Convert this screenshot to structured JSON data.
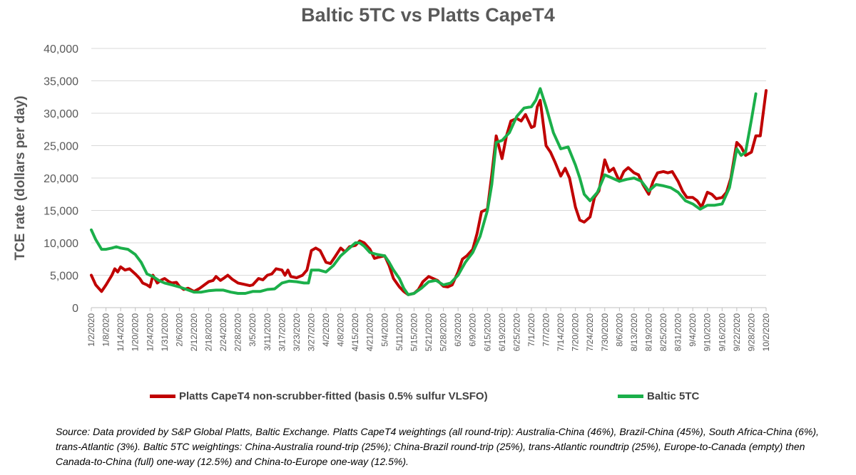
{
  "chart_data": {
    "type": "line",
    "title": "Baltic 5TC vs Platts CapeT4",
    "ylabel": "TCE rate (dollars per day)",
    "xlabel": "",
    "ylim": [
      0,
      40000
    ],
    "y_ticks": [
      "0",
      "5,000",
      "10,000",
      "15,000",
      "20,000",
      "25,000",
      "30,000",
      "35,000",
      "40,000"
    ],
    "grid": "horizontal",
    "legend_position": "bottom",
    "x_ticks": [
      "1/2/2020",
      "1/8/2020",
      "1/14/2020",
      "1/20/2020",
      "1/24/2020",
      "1/31/2020",
      "2/6/2020",
      "2/12/2020",
      "2/18/2020",
      "2/24/2020",
      "2/28/2020",
      "3/5/2020",
      "3/11/2020",
      "3/17/2020",
      "3/23/2020",
      "3/27/2020",
      "4/2/2020",
      "4/8/2020",
      "4/15/2020",
      "4/21/2020",
      "5/4/2020",
      "5/11/2020",
      "5/15/2020",
      "5/21/2020",
      "5/28/2020",
      "6/3/2020",
      "6/9/2020",
      "6/15/2020",
      "6/19/2020",
      "6/25/2020",
      "7/1/2020",
      "7/7/2020",
      "7/14/2020",
      "7/20/2020",
      "7/24/2020",
      "7/30/2020",
      "8/6/2020",
      "8/13/2020",
      "8/19/2020",
      "8/25/2020",
      "8/31/2020",
      "9/4/2020",
      "9/10/2020",
      "9/16/2020",
      "9/22/2020",
      "9/28/2020",
      "10/2/2020"
    ],
    "series": [
      {
        "name": "Platts CapeT4 non-scrubber-fitted (basis 0.5% sulfur VLSFO)",
        "color": "#C00000",
        "points": [
          [
            0,
            5000
          ],
          [
            0.3,
            3500
          ],
          [
            0.7,
            2500
          ],
          [
            1,
            3500
          ],
          [
            1.4,
            5000
          ],
          [
            1.6,
            6000
          ],
          [
            1.8,
            5500
          ],
          [
            2,
            6300
          ],
          [
            2.3,
            5800
          ],
          [
            2.6,
            6000
          ],
          [
            3,
            5200
          ],
          [
            3.3,
            4500
          ],
          [
            3.5,
            3800
          ],
          [
            3.8,
            3500
          ],
          [
            4,
            3200
          ],
          [
            4.2,
            5000
          ],
          [
            4.5,
            3800
          ],
          [
            4.8,
            4300
          ],
          [
            5,
            4500
          ],
          [
            5.3,
            4000
          ],
          [
            5.5,
            3800
          ],
          [
            5.8,
            3900
          ],
          [
            6,
            3300
          ],
          [
            6.3,
            2800
          ],
          [
            6.6,
            3000
          ],
          [
            7,
            2500
          ],
          [
            7.4,
            3000
          ],
          [
            7.7,
            3500
          ],
          [
            8,
            4000
          ],
          [
            8.3,
            4200
          ],
          [
            8.5,
            4800
          ],
          [
            8.8,
            4200
          ],
          [
            9,
            4500
          ],
          [
            9.3,
            5000
          ],
          [
            9.6,
            4400
          ],
          [
            10,
            3800
          ],
          [
            10.4,
            3600
          ],
          [
            10.8,
            3400
          ],
          [
            11,
            3500
          ],
          [
            11.4,
            4500
          ],
          [
            11.7,
            4300
          ],
          [
            12,
            5000
          ],
          [
            12.3,
            5200
          ],
          [
            12.6,
            6000
          ],
          [
            13,
            5800
          ],
          [
            13.2,
            5000
          ],
          [
            13.4,
            5800
          ],
          [
            13.6,
            4800
          ],
          [
            14,
            4600
          ],
          [
            14.4,
            5000
          ],
          [
            14.7,
            5800
          ],
          [
            15,
            8800
          ],
          [
            15.3,
            9200
          ],
          [
            15.6,
            8800
          ],
          [
            16,
            7000
          ],
          [
            16.3,
            6800
          ],
          [
            16.6,
            7800
          ],
          [
            17,
            9200
          ],
          [
            17.3,
            8600
          ],
          [
            17.6,
            9400
          ],
          [
            18,
            9600
          ],
          [
            18.3,
            10300
          ],
          [
            18.6,
            10000
          ],
          [
            19,
            9000
          ],
          [
            19.3,
            7600
          ],
          [
            19.6,
            7800
          ],
          [
            20,
            8000
          ],
          [
            20.3,
            6500
          ],
          [
            20.6,
            4500
          ],
          [
            21,
            3200
          ],
          [
            21.3,
            2500
          ],
          [
            21.6,
            2000
          ],
          [
            22,
            2200
          ],
          [
            22.3,
            2800
          ],
          [
            22.6,
            4000
          ],
          [
            23,
            4800
          ],
          [
            23.3,
            4500
          ],
          [
            23.6,
            4200
          ],
          [
            24,
            3300
          ],
          [
            24.3,
            3200
          ],
          [
            24.6,
            3500
          ],
          [
            25,
            5500
          ],
          [
            25.3,
            7500
          ],
          [
            25.6,
            8000
          ],
          [
            26,
            9000
          ],
          [
            26.3,
            11500
          ],
          [
            26.6,
            14800
          ],
          [
            27,
            15200
          ],
          [
            27.3,
            20500
          ],
          [
            27.6,
            26500
          ],
          [
            28,
            23000
          ],
          [
            28.3,
            26500
          ],
          [
            28.6,
            28800
          ],
          [
            29,
            29200
          ],
          [
            29.3,
            28800
          ],
          [
            29.6,
            29800
          ],
          [
            30,
            27800
          ],
          [
            30.2,
            28000
          ],
          [
            30.4,
            31000
          ],
          [
            30.6,
            32000
          ],
          [
            31,
            25000
          ],
          [
            31.3,
            24000
          ],
          [
            31.6,
            22500
          ],
          [
            32,
            20300
          ],
          [
            32.3,
            21500
          ],
          [
            32.6,
            20000
          ],
          [
            33,
            15500
          ],
          [
            33.3,
            13500
          ],
          [
            33.6,
            13200
          ],
          [
            34,
            14000
          ],
          [
            34.3,
            17000
          ],
          [
            34.6,
            18000
          ],
          [
            35,
            22800
          ],
          [
            35.3,
            21000
          ],
          [
            35.6,
            21500
          ],
          [
            36,
            19500
          ],
          [
            36.3,
            21000
          ],
          [
            36.6,
            21600
          ],
          [
            37,
            20800
          ],
          [
            37.3,
            20500
          ],
          [
            37.6,
            19000
          ],
          [
            38,
            17500
          ],
          [
            38.3,
            19500
          ],
          [
            38.6,
            20800
          ],
          [
            39,
            21000
          ],
          [
            39.3,
            20800
          ],
          [
            39.6,
            21000
          ],
          [
            40,
            19500
          ],
          [
            40.3,
            18000
          ],
          [
            40.6,
            17000
          ],
          [
            41,
            17000
          ],
          [
            41.3,
            16500
          ],
          [
            41.6,
            15500
          ],
          [
            42,
            17800
          ],
          [
            42.3,
            17500
          ],
          [
            42.6,
            16800
          ],
          [
            43,
            17000
          ],
          [
            43.3,
            17800
          ],
          [
            43.6,
            20000
          ],
          [
            44,
            25500
          ],
          [
            44.3,
            24800
          ],
          [
            44.6,
            23500
          ],
          [
            45,
            24000
          ],
          [
            45.3,
            26500
          ],
          [
            45.6,
            26500
          ],
          [
            46,
            33500
          ]
        ]
      },
      {
        "name": "Baltic 5TC",
        "color": "#1BAF4A",
        "points": [
          [
            0,
            12000
          ],
          [
            0.3,
            10500
          ],
          [
            0.7,
            9000
          ],
          [
            1,
            9000
          ],
          [
            1.4,
            9200
          ],
          [
            1.7,
            9400
          ],
          [
            2,
            9200
          ],
          [
            2.5,
            9000
          ],
          [
            3,
            8200
          ],
          [
            3.4,
            7000
          ],
          [
            3.8,
            5200
          ],
          [
            4.2,
            4800
          ],
          [
            4.6,
            4200
          ],
          [
            5,
            3800
          ],
          [
            5.5,
            3500
          ],
          [
            6,
            3200
          ],
          [
            6.5,
            2800
          ],
          [
            7,
            2400
          ],
          [
            7.5,
            2400
          ],
          [
            8,
            2600
          ],
          [
            8.5,
            2700
          ],
          [
            9,
            2700
          ],
          [
            9.5,
            2400
          ],
          [
            10,
            2200
          ],
          [
            10.5,
            2200
          ],
          [
            11,
            2500
          ],
          [
            11.5,
            2500
          ],
          [
            12,
            2800
          ],
          [
            12.5,
            2900
          ],
          [
            13,
            3800
          ],
          [
            13.5,
            4100
          ],
          [
            14,
            4000
          ],
          [
            14.5,
            3800
          ],
          [
            14.8,
            3800
          ],
          [
            15,
            5800
          ],
          [
            15.5,
            5800
          ],
          [
            16,
            5500
          ],
          [
            16.5,
            6500
          ],
          [
            17,
            8000
          ],
          [
            17.5,
            9000
          ],
          [
            18,
            10000
          ],
          [
            18.3,
            10000
          ],
          [
            18.6,
            9500
          ],
          [
            19,
            8500
          ],
          [
            19.5,
            8200
          ],
          [
            20,
            8000
          ],
          [
            20.3,
            7000
          ],
          [
            20.6,
            5800
          ],
          [
            21,
            4500
          ],
          [
            21.3,
            3000
          ],
          [
            21.6,
            2000
          ],
          [
            22,
            2200
          ],
          [
            22.5,
            3000
          ],
          [
            23,
            4000
          ],
          [
            23.5,
            4200
          ],
          [
            24,
            3500
          ],
          [
            24.5,
            3800
          ],
          [
            25,
            5000
          ],
          [
            25.5,
            7000
          ],
          [
            26,
            8500
          ],
          [
            26.5,
            11000
          ],
          [
            27,
            15000
          ],
          [
            27.3,
            19000
          ],
          [
            27.6,
            25500
          ],
          [
            28,
            25800
          ],
          [
            28.5,
            27000
          ],
          [
            29,
            29500
          ],
          [
            29.5,
            30800
          ],
          [
            30,
            31000
          ],
          [
            30.3,
            32000
          ],
          [
            30.6,
            33800
          ],
          [
            31,
            31000
          ],
          [
            31.5,
            27000
          ],
          [
            32,
            24500
          ],
          [
            32.5,
            24800
          ],
          [
            33,
            22000
          ],
          [
            33.3,
            20000
          ],
          [
            33.6,
            17500
          ],
          [
            34,
            16500
          ],
          [
            34.5,
            17800
          ],
          [
            35,
            20500
          ],
          [
            35.5,
            20000
          ],
          [
            36,
            19500
          ],
          [
            36.5,
            19800
          ],
          [
            37,
            20000
          ],
          [
            37.5,
            19500
          ],
          [
            38,
            18000
          ],
          [
            38.5,
            19000
          ],
          [
            39,
            18800
          ],
          [
            39.5,
            18500
          ],
          [
            40,
            17800
          ],
          [
            40.5,
            16500
          ],
          [
            41,
            16000
          ],
          [
            41.5,
            15200
          ],
          [
            42,
            15800
          ],
          [
            42.5,
            15800
          ],
          [
            43,
            16000
          ],
          [
            43.5,
            18500
          ],
          [
            44,
            24500
          ],
          [
            44.3,
            23500
          ],
          [
            44.6,
            24000
          ],
          [
            45,
            29000
          ],
          [
            45.3,
            33000
          ]
        ]
      }
    ]
  },
  "legend": {
    "red_label": "Platts CapeT4 non-scrubber-fitted (basis 0.5% sulfur VLSFO)",
    "green_label": "Baltic 5TC"
  },
  "source_note": "Source: Data provided by S&P Global Platts, Baltic Exchange. Platts CapeT4 weightings (all round-trip): Australia-China (46%), Brazil-China (45%), South Africa-China (6%), trans-Atlantic (3%). Baltic 5TC weightings: China-Australia round-trip (25%); China-Brazil round-trip (25%), trans-Atlantic roundtrip (25%), Europe-to-Canada (empty) then Canada-to-China (full) one-way (12.5%) and China-to-Europe one-way (12.5%).",
  "colors": {
    "red": "#C00000",
    "green": "#1BAF4A",
    "grid": "#D9D9D9",
    "text": "#595959"
  }
}
